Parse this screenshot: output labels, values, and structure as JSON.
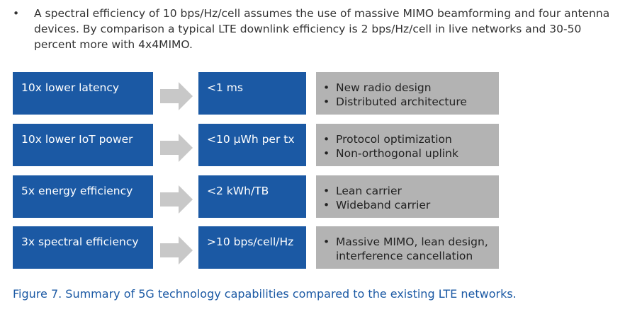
{
  "intro": {
    "bullet": "•",
    "text": "A spectral efficiency of 10 bps/Hz/cell assumes the use of massive MIMO beamforming and four antenna devices. By comparison a typical LTE downlink efficiency is 2 bps/Hz/cell in live networks and 30-50 percent more with 4x4MIMO."
  },
  "colors": {
    "blue": "#1b59a4",
    "grey": "#b3b3b3",
    "arrow": "#c8c8c8"
  },
  "rows": [
    {
      "capability": "10x lower latency",
      "target": "<1 ms",
      "enablers": [
        "New radio design",
        "Distributed architecture"
      ]
    },
    {
      "capability": "10x lower IoT power",
      "target": "<10 µWh per tx",
      "enablers": [
        "Protocol optimization",
        "Non-orthogonal uplink"
      ]
    },
    {
      "capability": "5x energy efficiency",
      "target": "<2 kWh/TB",
      "enablers": [
        "Lean carrier",
        "Wideband carrier"
      ]
    },
    {
      "capability": "3x spectral efficiency",
      "target": ">10 bps/cell/Hz",
      "enablers": [
        "Massive MIMO, lean design, interference cancellation"
      ]
    }
  ],
  "bullet_char": "•",
  "caption": "Figure 7. Summary of 5G technology capabilities compared to the existing LTE networks."
}
